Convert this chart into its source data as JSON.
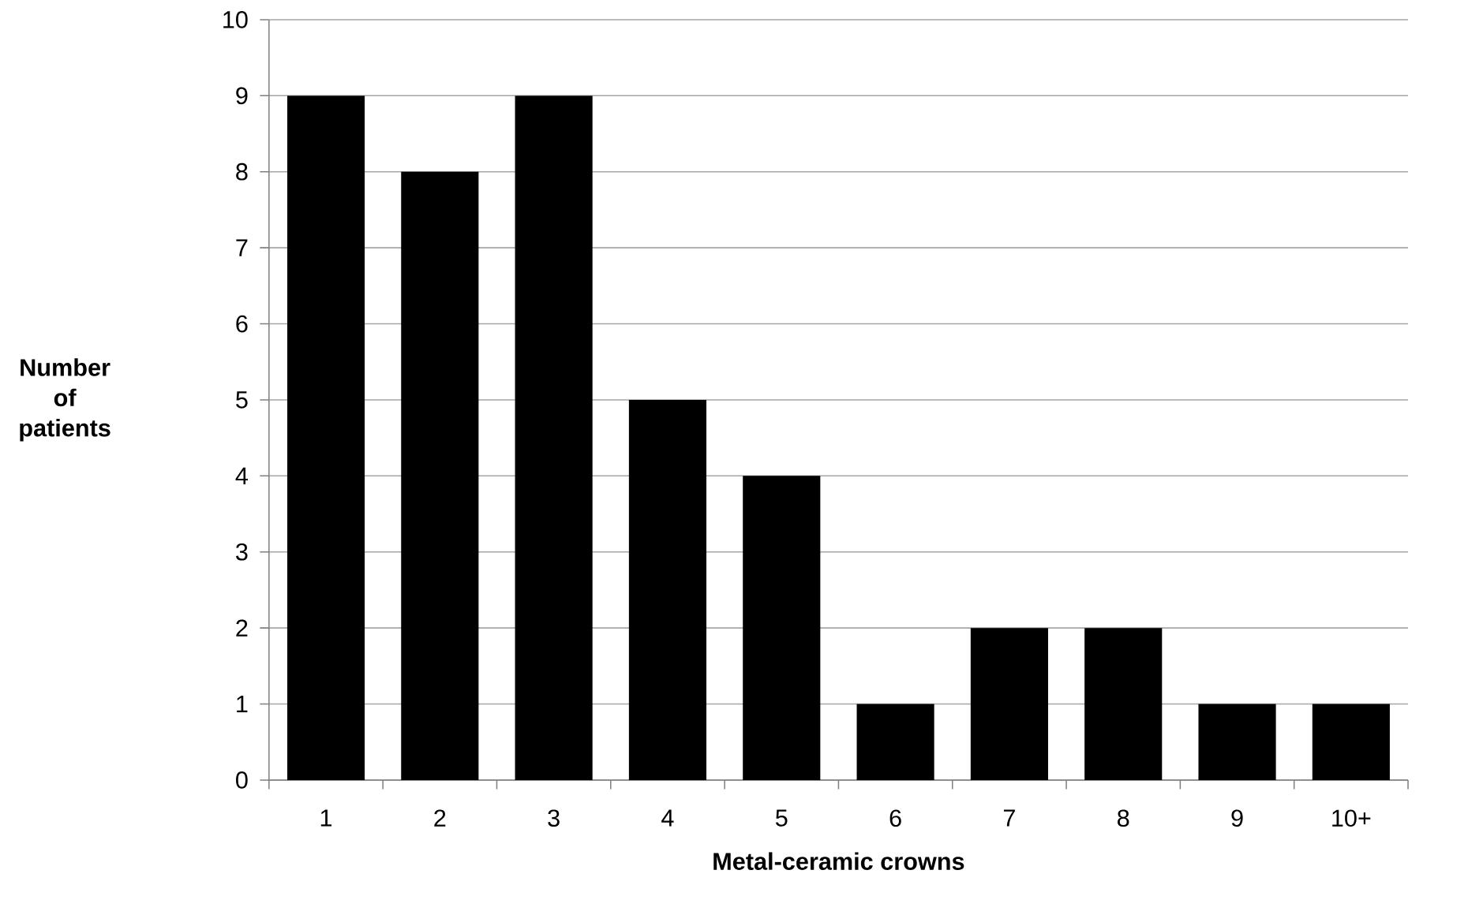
{
  "chart_data": {
    "type": "bar",
    "xlabel": "Metal-ceramic crowns",
    "ylabel": "Number of patients",
    "categories": [
      "1",
      "2",
      "3",
      "4",
      "5",
      "6",
      "7",
      "8",
      "9",
      "10+"
    ],
    "values": [
      9,
      8,
      9,
      5,
      4,
      1,
      2,
      2,
      1,
      1
    ],
    "color": "#000000",
    "ylim": [
      0,
      10
    ],
    "yticks": [
      0,
      1,
      2,
      3,
      4,
      5,
      6,
      7,
      8,
      9,
      10
    ],
    "grid": "y"
  }
}
